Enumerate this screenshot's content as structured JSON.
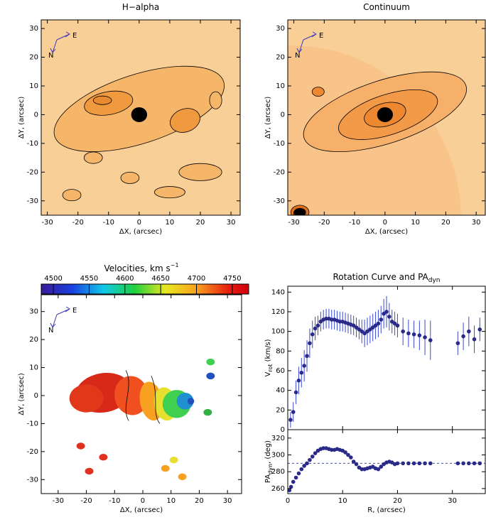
{
  "chart_data": [
    {
      "type": "image",
      "title": "H−alpha",
      "xlabel": "ΔX, (arcsec)",
      "ylabel": "ΔY, (arcsec)",
      "xlim": [
        -32,
        33
      ],
      "ylim": [
        -35,
        33
      ],
      "xticks": [
        -30,
        -20,
        -10,
        0,
        10,
        20,
        30
      ],
      "yticks": [
        -30,
        -20,
        -10,
        0,
        10,
        20,
        30
      ],
      "compass": {
        "east": "E",
        "north": "N"
      }
    },
    {
      "type": "image",
      "title": "Continuum",
      "xlabel": "ΔX, (arcsec)",
      "ylabel": "ΔY, (arcsec)",
      "xlim": [
        -32,
        33
      ],
      "ylim": [
        -35,
        33
      ],
      "xticks": [
        -30,
        -20,
        -10,
        0,
        10,
        20,
        30
      ],
      "yticks": [
        -30,
        -20,
        -10,
        0,
        10,
        20,
        30
      ],
      "compass": {
        "east": "E",
        "north": "N"
      }
    },
    {
      "type": "velocity-map",
      "title": "Velocities, km s",
      "title_sup": "−1",
      "xlabel": "ΔX, (arcsec)",
      "ylabel": "ΔY, (arcsec)",
      "xlim": [
        -36,
        35
      ],
      "ylim": [
        -35,
        36
      ],
      "xticks": [
        -30,
        -20,
        -10,
        0,
        10,
        20,
        30
      ],
      "yticks": [
        -30,
        -20,
        -10,
        0,
        10,
        20,
        30
      ],
      "clim": [
        4483,
        4773
      ],
      "cticks": [
        4500,
        4550,
        4600,
        4650,
        4700,
        4750
      ],
      "compass": {
        "east": "E",
        "north": "N"
      }
    },
    {
      "type": "errorbar",
      "title": "Rotation Curve and PA",
      "title_sub": "dyn",
      "ylabel": [
        "V",
        "rot",
        " (km/s)"
      ],
      "xlim": [
        0,
        36
      ],
      "ylim": [
        0,
        146
      ],
      "xticks": [
        0,
        10,
        20,
        30
      ],
      "yticks": [
        0,
        20,
        40,
        60,
        80,
        100,
        120,
        140
      ],
      "color": "#2a2a8a",
      "errcolor": "#3a4ad0",
      "x": [
        0.5,
        1,
        1.5,
        2,
        2.5,
        3,
        3.5,
        4,
        4.5,
        5,
        5.5,
        6,
        6.5,
        7,
        7.5,
        8,
        8.5,
        9,
        9.5,
        10,
        10.5,
        11,
        11.5,
        12,
        12.5,
        13,
        13.5,
        14,
        14.5,
        15,
        15.5,
        16,
        16.5,
        17,
        17.5,
        18,
        18.5,
        19,
        19.5,
        20,
        21,
        22,
        23,
        24,
        25,
        26,
        31,
        32,
        33,
        34,
        35
      ],
      "values": [
        10,
        18,
        38,
        50,
        58,
        65,
        75,
        88,
        97,
        103,
        106,
        110,
        112,
        113,
        113,
        112,
        112,
        111,
        110,
        110,
        109,
        108,
        107,
        106,
        104,
        102,
        100,
        98,
        100,
        102,
        104,
        106,
        108,
        112,
        118,
        120,
        115,
        110,
        108,
        106,
        100,
        98,
        97,
        96,
        94,
        91,
        88,
        95,
        100,
        92,
        102
      ],
      "errors": [
        8,
        10,
        12,
        14,
        15,
        16,
        16,
        15,
        14,
        12,
        10,
        10,
        10,
        10,
        10,
        10,
        10,
        10,
        10,
        10,
        10,
        10,
        10,
        10,
        10,
        10,
        12,
        14,
        14,
        14,
        14,
        14,
        14,
        14,
        15,
        16,
        14,
        12,
        12,
        12,
        14,
        14,
        14,
        15,
        18,
        20,
        12,
        14,
        15,
        14,
        12
      ]
    },
    {
      "type": "scatter",
      "ylabel": [
        "PA",
        "dyn",
        ", (deg)"
      ],
      "xlabel": "R, (arcsec)",
      "xlim": [
        0,
        36
      ],
      "ylim": [
        254,
        330
      ],
      "xticks": [
        0,
        10,
        20,
        30
      ],
      "yticks": [
        260,
        280,
        300,
        320
      ],
      "color": "#2a2a8a",
      "reference_line": 290,
      "x": [
        0.3,
        0.6,
        1,
        1.5,
        2,
        2.5,
        3,
        3.5,
        4,
        4.5,
        5,
        5.5,
        6,
        6.5,
        7,
        7.5,
        8,
        8.5,
        9,
        9.5,
        10,
        10.5,
        11,
        11.5,
        12,
        12.5,
        13,
        13.5,
        14,
        14.5,
        15,
        15.5,
        16,
        16.5,
        17,
        17.5,
        18,
        18.5,
        19,
        19.5,
        20,
        21,
        22,
        23,
        24,
        25,
        26,
        31,
        32,
        33,
        34,
        35
      ],
      "values": [
        258,
        262,
        268,
        273,
        278,
        283,
        287,
        290,
        294,
        298,
        302,
        305,
        307,
        308,
        308,
        307,
        306,
        306,
        307,
        306,
        305,
        303,
        300,
        297,
        292,
        289,
        285,
        283,
        283,
        284,
        285,
        286,
        284,
        283,
        286,
        289,
        291,
        292,
        291,
        289,
        290,
        290,
        290,
        290,
        290,
        290,
        290,
        290,
        290,
        290,
        290,
        290
      ]
    }
  ]
}
